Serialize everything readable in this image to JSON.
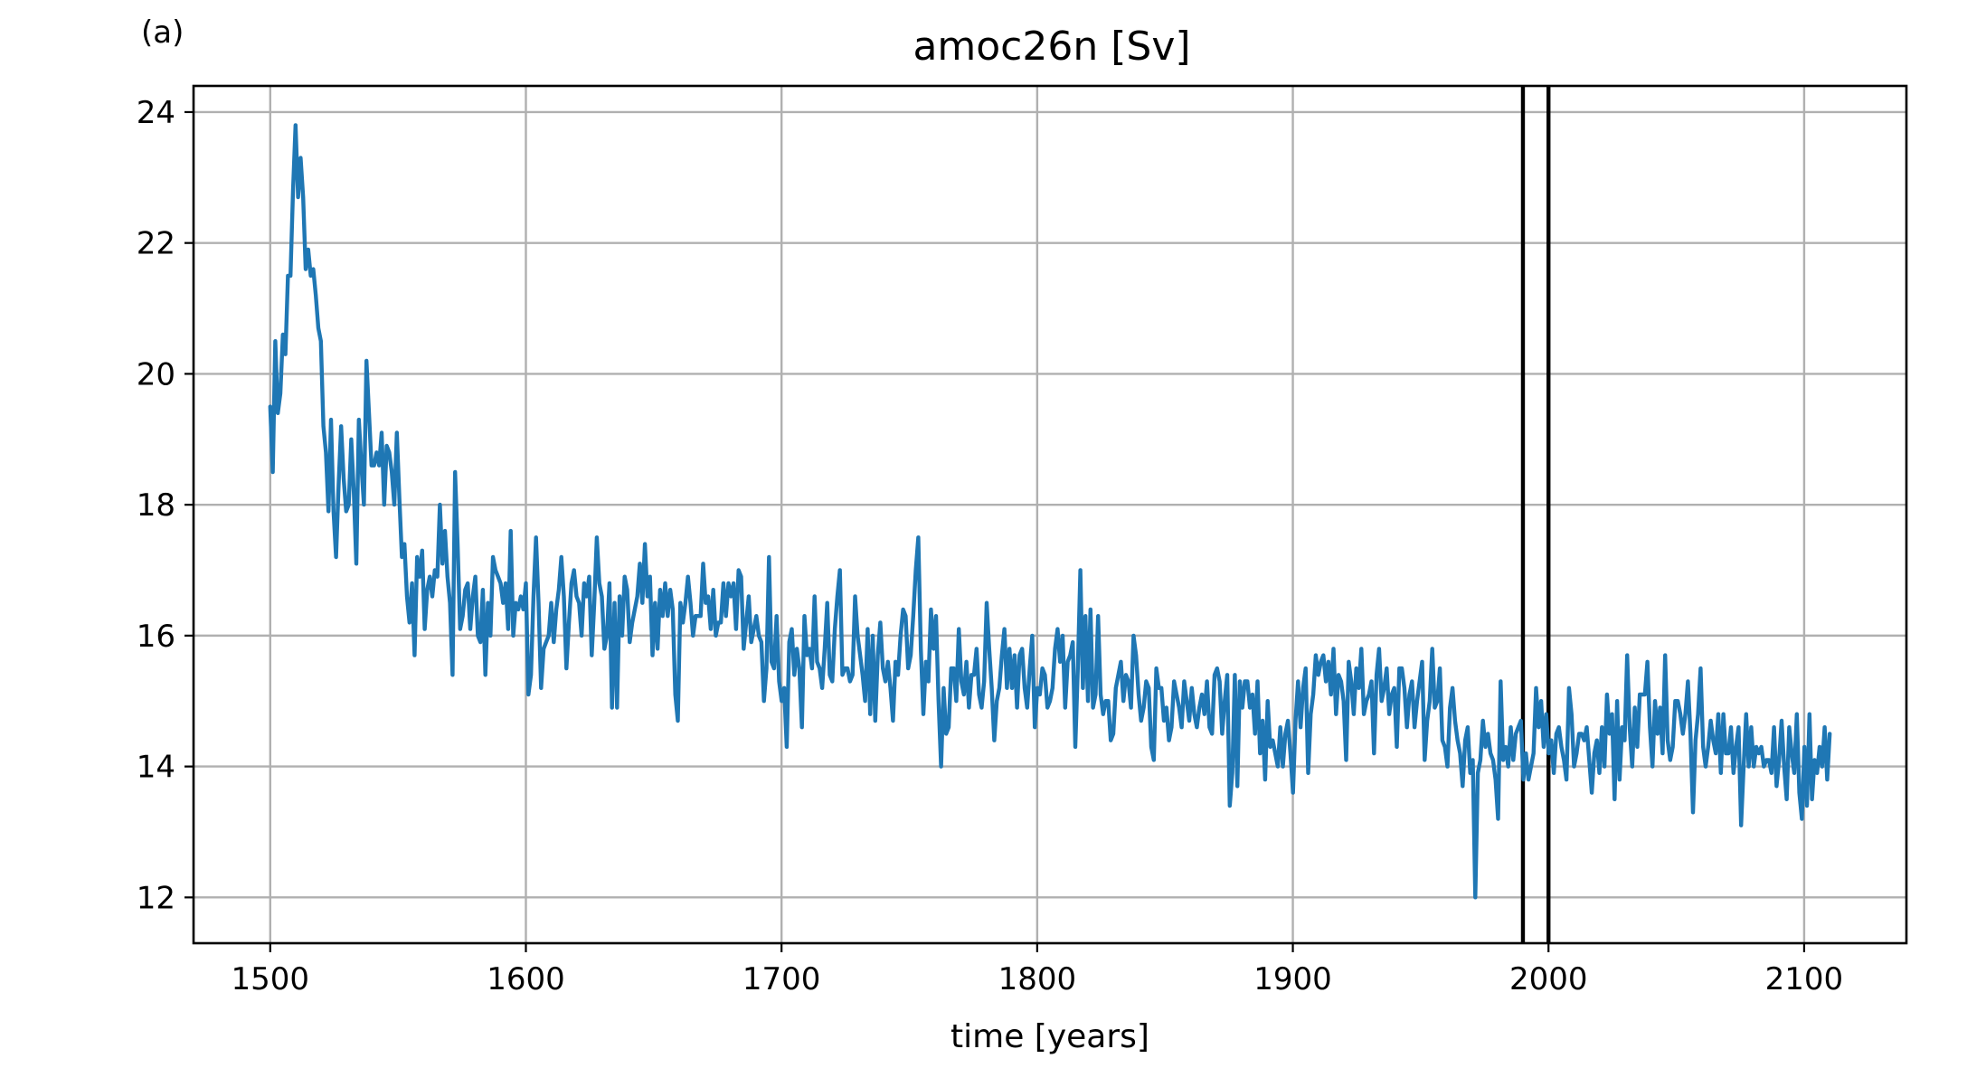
{
  "panel_label": "(a)",
  "chart_data": {
    "type": "line",
    "title": "amoc26n [Sv]",
    "xlabel": "time [years]",
    "ylabel": "",
    "xlim": [
      1470,
      2140
    ],
    "ylim": [
      11.3,
      24.4
    ],
    "xticks": [
      1500,
      1600,
      1700,
      1800,
      1900,
      2000,
      2100
    ],
    "yticks": [
      12,
      14,
      16,
      18,
      20,
      22,
      24
    ],
    "grid": true,
    "series_color": "#1f77b4",
    "vertical_lines": [
      1990,
      2000
    ],
    "x_start": 1500,
    "x_end": 2110,
    "values": [
      19.5,
      18.5,
      20.5,
      19.4,
      19.7,
      20.6,
      20.3,
      21.5,
      21.5,
      22.8,
      23.8,
      22.7,
      23.3,
      22.7,
      21.6,
      21.9,
      21.5,
      21.6,
      21.2,
      20.7,
      20.5,
      19.2,
      18.8,
      17.9,
      19.3,
      17.9,
      17.2,
      18.3,
      19.2,
      18.4,
      17.9,
      18.0,
      19.0,
      18.2,
      17.1,
      19.3,
      18.6,
      18.0,
      20.2,
      19.4,
      18.6,
      18.6,
      18.8,
      18.6,
      19.1,
      18.0,
      18.9,
      18.8,
      18.5,
      18.0,
      19.1,
      18.1,
      17.2,
      17.4,
      16.6,
      16.2,
      16.8,
      15.7,
      17.2,
      16.9,
      17.3,
      16.1,
      16.7,
      16.9,
      16.6,
      17.0,
      16.9,
      18.0,
      17.1,
      17.6,
      16.9,
      16.5,
      15.4,
      18.5,
      17.4,
      16.1,
      16.3,
      16.7,
      16.8,
      16.1,
      16.6,
      16.9,
      16.0,
      15.9,
      16.7,
      15.4,
      16.5,
      16.0,
      17.2,
      17.0,
      16.9,
      16.8,
      16.5,
      16.8,
      16.1,
      17.6,
      16.0,
      16.5,
      16.4,
      16.6,
      16.4,
      16.8,
      15.1,
      15.4,
      16.6,
      17.5,
      16.5,
      15.2,
      15.8,
      15.9,
      16.0,
      16.5,
      15.9,
      16.4,
      16.7,
      17.2,
      16.6,
      15.5,
      16.2,
      16.8,
      17.0,
      16.6,
      16.5,
      16.0,
      16.8,
      16.6,
      16.9,
      15.7,
      16.5,
      17.5,
      16.8,
      16.6,
      15.8,
      16.0,
      16.8,
      14.9,
      16.5,
      14.9,
      16.6,
      16.0,
      16.9,
      16.7,
      15.9,
      16.2,
      16.4,
      16.6,
      17.1,
      16.5,
      17.4,
      16.6,
      16.9,
      15.7,
      16.5,
      15.8,
      16.7,
      16.3,
      16.8,
      16.3,
      16.7,
      16.4,
      15.1,
      14.7,
      16.5,
      16.2,
      16.5,
      16.9,
      16.5,
      16.0,
      16.3,
      16.3,
      16.3,
      17.1,
      16.5,
      16.6,
      16.1,
      16.7,
      16.0,
      16.2,
      16.2,
      16.8,
      16.3,
      16.8,
      16.6,
      16.8,
      16.1,
      17.0,
      16.9,
      15.8,
      16.2,
      16.6,
      15.9,
      16.1,
      16.3,
      16.0,
      15.9,
      15.0,
      15.5,
      17.2,
      15.6,
      15.5,
      16.3,
      15.3,
      15.0,
      15.2,
      14.3,
      15.9,
      16.1,
      15.4,
      15.8,
      15.5,
      14.6,
      16.3,
      15.7,
      15.8,
      15.5,
      16.6,
      15.6,
      15.5,
      15.2,
      15.8,
      16.5,
      15.4,
      15.3,
      16.1,
      16.6,
      17.0,
      15.4,
      15.5,
      15.5,
      15.3,
      15.4,
      16.6,
      16.0,
      15.7,
      15.4,
      15.0,
      16.1,
      14.8,
      16.0,
      14.7,
      15.7,
      16.2,
      15.5,
      15.3,
      15.6,
      15.2,
      14.7,
      15.6,
      15.4,
      16.0,
      16.4,
      16.3,
      15.5,
      15.7,
      16.3,
      17.0,
      17.5,
      15.8,
      14.8,
      15.6,
      15.3,
      16.4,
      15.8,
      16.3,
      15.0,
      14.0,
      15.2,
      14.5,
      14.6,
      15.5,
      15.5,
      15.0,
      16.1,
      15.3,
      15.1,
      15.6,
      14.9,
      15.4,
      15.4,
      15.8,
      15.1,
      14.9,
      15.3,
      16.5,
      15.8,
      15.2,
      14.4,
      15.0,
      15.2,
      15.7,
      16.1,
      15.2,
      15.8,
      15.2,
      15.7,
      14.9,
      15.7,
      15.8,
      15.2,
      14.9,
      15.5,
      16.0,
      14.6,
      15.2,
      15.1,
      15.5,
      15.4,
      14.9,
      15.0,
      15.2,
      15.8,
      16.1,
      15.6,
      16.0,
      14.9,
      15.6,
      15.7,
      15.9,
      14.3,
      15.5,
      17.0,
      15.2,
      16.3,
      15.0,
      16.4,
      14.9,
      15.1,
      16.3,
      15.1,
      14.8,
      15.0,
      15.0,
      14.4,
      14.5,
      15.2,
      15.4,
      15.6,
      15.0,
      15.4,
      15.3,
      14.9,
      16.0,
      15.7,
      15.1,
      14.7,
      14.9,
      15.3,
      15.2,
      14.3,
      14.1,
      15.5,
      15.2,
      15.2,
      14.7,
      14.9,
      14.4,
      14.6,
      15.3,
      15.1,
      14.9,
      14.6,
      15.3,
      15.0,
      14.7,
      15.2,
      14.8,
      14.6,
      14.9,
      15.1,
      14.8,
      15.3,
      14.6,
      14.5,
      15.4,
      15.5,
      15.3,
      14.5,
      15.0,
      15.4,
      13.4,
      13.9,
      15.4,
      13.7,
      15.3,
      14.9,
      15.3,
      15.3,
      14.9,
      15.1,
      14.5,
      15.3,
      14.2,
      14.7,
      13.8,
      15.0,
      14.3,
      14.4,
      14.2,
      14.0,
      14.6,
      14.0,
      14.5,
      14.7,
      14.2,
      13.6,
      14.7,
      15.3,
      14.6,
      15.2,
      15.5,
      13.9,
      14.8,
      15.1,
      15.7,
      15.4,
      15.6,
      15.7,
      15.3,
      15.6,
      15.1,
      15.8,
      14.8,
      15.4,
      15.3,
      15.0,
      14.1,
      15.6,
      15.3,
      14.8,
      15.5,
      15.2,
      15.8,
      14.8,
      15.0,
      15.1,
      15.3,
      14.2,
      15.4,
      15.8,
      15.0,
      15.2,
      15.5,
      14.8,
      15.1,
      15.2,
      14.3,
      15.5,
      15.5,
      15.2,
      14.6,
      15.1,
      15.3,
      14.6,
      15.0,
      15.3,
      15.6,
      14.1,
      14.7,
      15.0,
      15.8,
      14.9,
      15.0,
      15.5,
      14.4,
      14.3,
      14.0,
      14.9,
      15.2,
      14.7,
      14.4,
      14.2,
      13.7,
      14.4,
      14.6,
      13.9,
      14.1,
      12.0,
      13.9,
      14.1,
      14.7,
      14.3,
      14.5,
      14.2,
      14.1,
      13.8,
      13.2,
      15.3,
      14.1,
      14.3,
      14.0,
      14.6,
      14.1,
      14.5,
      14.6,
      14.7,
      13.8,
      14.2,
      13.8,
      14.0,
      14.2,
      15.2,
      14.6,
      15.0,
      14.3,
      14.8,
      14.2,
      14.4,
      13.9,
      14.5,
      14.6,
      14.3,
      14.1,
      13.8,
      15.2,
      14.8,
      14.0,
      14.2,
      14.5,
      14.5,
      14.4,
      14.6,
      14.1,
      13.6,
      14.2,
      14.4,
      13.9,
      14.6,
      14.0,
      15.1,
      14.5,
      14.8,
      13.5,
      15.0,
      13.8,
      14.6,
      14.4,
      15.7,
      14.6,
      14.0,
      14.9,
      14.3,
      15.1,
      15.1,
      15.1,
      15.6,
      14.6,
      14.0,
      15.0,
      14.5,
      14.9,
      14.2,
      15.7,
      14.4,
      14.1,
      14.3,
      15.0,
      15.0,
      14.8,
      14.5,
      14.8,
      15.3,
      14.5,
      13.3,
      14.4,
      14.8,
      15.5,
      14.3,
      14.0,
      14.3,
      14.7,
      14.4,
      14.2,
      14.8,
      13.9,
      14.8,
      14.2,
      14.2,
      14.6,
      13.9,
      14.3,
      14.6,
      13.1,
      14.0,
      14.8,
      14.0,
      14.6,
      14.0,
      14.3,
      14.2,
      14.3,
      14.0,
      14.1,
      14.1,
      13.9,
      14.6,
      13.7,
      14.1,
      14.7,
      14.0,
      13.5,
      14.6,
      14.2,
      13.9,
      14.8,
      13.6,
      13.2,
      14.3,
      13.4,
      14.8,
      13.5,
      14.1,
      13.9,
      14.3,
      14.0,
      14.6,
      13.8,
      14.5
    ]
  }
}
